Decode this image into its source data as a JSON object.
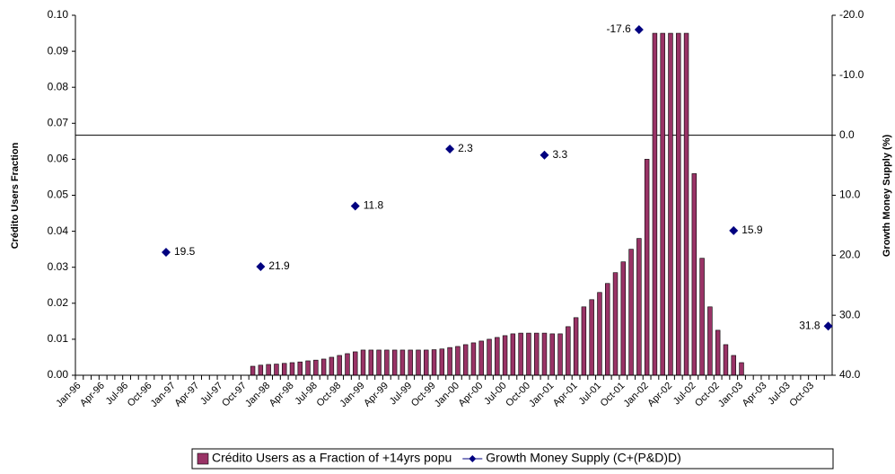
{
  "chart_data": {
    "type": "bar",
    "y_label": "Crédito Users Fraction",
    "y2_label": "Growth Money Supply (%)",
    "categories": [
      "Jan-96",
      null,
      null,
      "Apr-96",
      null,
      null,
      "Jul-96",
      null,
      null,
      "Oct-96",
      null,
      null,
      "Jan-97",
      null,
      null,
      "Apr-97",
      null,
      null,
      "Jul-97",
      null,
      null,
      "Oct-97",
      null,
      null,
      "Jan-98",
      null,
      null,
      "Apr-98",
      null,
      null,
      "Jul-98",
      null,
      null,
      "Oct-98",
      null,
      null,
      "Jan-99",
      null,
      null,
      "Apr-99",
      null,
      null,
      "Jul-99",
      null,
      null,
      "Oct-99",
      null,
      null,
      "Jan-00",
      null,
      null,
      "Apr-00",
      null,
      null,
      "Jul-00",
      null,
      null,
      "Oct-00",
      null,
      null,
      "Jan-01",
      null,
      null,
      "Apr-01",
      null,
      null,
      "Jul-01",
      null,
      null,
      "Oct-01",
      null,
      null,
      "Jan-02",
      null,
      null,
      "Apr-02",
      null,
      null,
      "Jul-02",
      null,
      null,
      "Oct-02",
      null,
      null,
      "Jan-03",
      null,
      null,
      "Apr-03",
      null,
      null,
      "Jul-03",
      null,
      null,
      "Oct-03",
      null,
      null
    ],
    "series": [
      {
        "name": "Crédito Users as a Fraction of +14yrs popu",
        "type": "bar",
        "color": "#993366",
        "values": [
          null,
          null,
          null,
          null,
          null,
          null,
          null,
          null,
          null,
          null,
          null,
          null,
          null,
          null,
          null,
          null,
          null,
          null,
          null,
          null,
          null,
          null,
          0.0025,
          0.0028,
          0.003,
          0.0031,
          0.0033,
          0.0035,
          0.0037,
          0.004,
          0.0042,
          0.0045,
          0.005,
          0.0055,
          0.006,
          0.0065,
          0.007,
          0.007,
          0.007,
          0.007,
          0.007,
          0.007,
          0.007,
          0.007,
          0.007,
          0.0071,
          0.0073,
          0.0077,
          0.008,
          0.0085,
          0.009,
          0.0095,
          0.01,
          0.0105,
          0.011,
          0.0115,
          0.0117,
          0.0117,
          0.0117,
          0.0117,
          0.0115,
          0.0115,
          0.0135,
          0.016,
          0.019,
          0.021,
          0.023,
          0.0255,
          0.0285,
          0.0315,
          0.035,
          0.038,
          0.06,
          0.095,
          0.095,
          0.095,
          0.095,
          0.095,
          0.056,
          0.0325,
          0.019,
          0.0125,
          0.0085,
          0.0055,
          0.0035,
          null,
          null,
          null,
          null,
          null,
          null,
          null,
          null,
          null,
          null,
          null
        ]
      },
      {
        "name": "Growth Money Supply (C+(P&D)D)",
        "type": "line",
        "axis": "y2",
        "color": "#000080",
        "values": [
          null,
          null,
          null,
          null,
          null,
          null,
          null,
          null,
          null,
          null,
          null,
          19.5,
          null,
          null,
          null,
          null,
          null,
          null,
          null,
          null,
          null,
          null,
          null,
          21.9,
          null,
          null,
          null,
          null,
          null,
          null,
          null,
          null,
          null,
          null,
          null,
          11.8,
          null,
          null,
          null,
          null,
          null,
          null,
          null,
          null,
          null,
          null,
          null,
          2.3,
          null,
          null,
          null,
          null,
          null,
          null,
          null,
          null,
          null,
          null,
          null,
          3.3,
          null,
          null,
          null,
          null,
          null,
          null,
          null,
          null,
          null,
          null,
          null,
          -17.6,
          null,
          null,
          null,
          null,
          null,
          null,
          null,
          null,
          null,
          null,
          null,
          15.9,
          null,
          null,
          null,
          null,
          null,
          null,
          null,
          null,
          null,
          null,
          null,
          31.8
        ]
      }
    ],
    "ylim": [
      0,
      0.1
    ],
    "yticks": [
      {
        "value": 0,
        "label": "0.00"
      },
      {
        "value": 0.01,
        "label": "0.01"
      },
      {
        "value": 0.02,
        "label": "0.02"
      },
      {
        "value": 0.03,
        "label": "0.03"
      },
      {
        "value": 0.04,
        "label": "0.04"
      },
      {
        "value": 0.05,
        "label": "0.05"
      },
      {
        "value": 0.06,
        "label": "0.06"
      },
      {
        "value": 0.07,
        "label": "0.07"
      },
      {
        "value": 0.08,
        "label": "0.08"
      },
      {
        "value": 0.09,
        "label": "0.09"
      },
      {
        "value": 0.1,
        "label": "0.10"
      }
    ],
    "y2lim": [
      40,
      -20
    ],
    "y2ticks": [
      {
        "value": -20,
        "label": "-20.0"
      },
      {
        "value": -10,
        "label": "-10.0"
      },
      {
        "value": 0,
        "label": "0.0"
      },
      {
        "value": 10,
        "label": "10.0"
      },
      {
        "value": 20,
        "label": "20.0"
      },
      {
        "value": 30,
        "label": "30.0"
      },
      {
        "value": 40,
        "label": "40.0"
      }
    ],
    "legend": "bottom"
  }
}
